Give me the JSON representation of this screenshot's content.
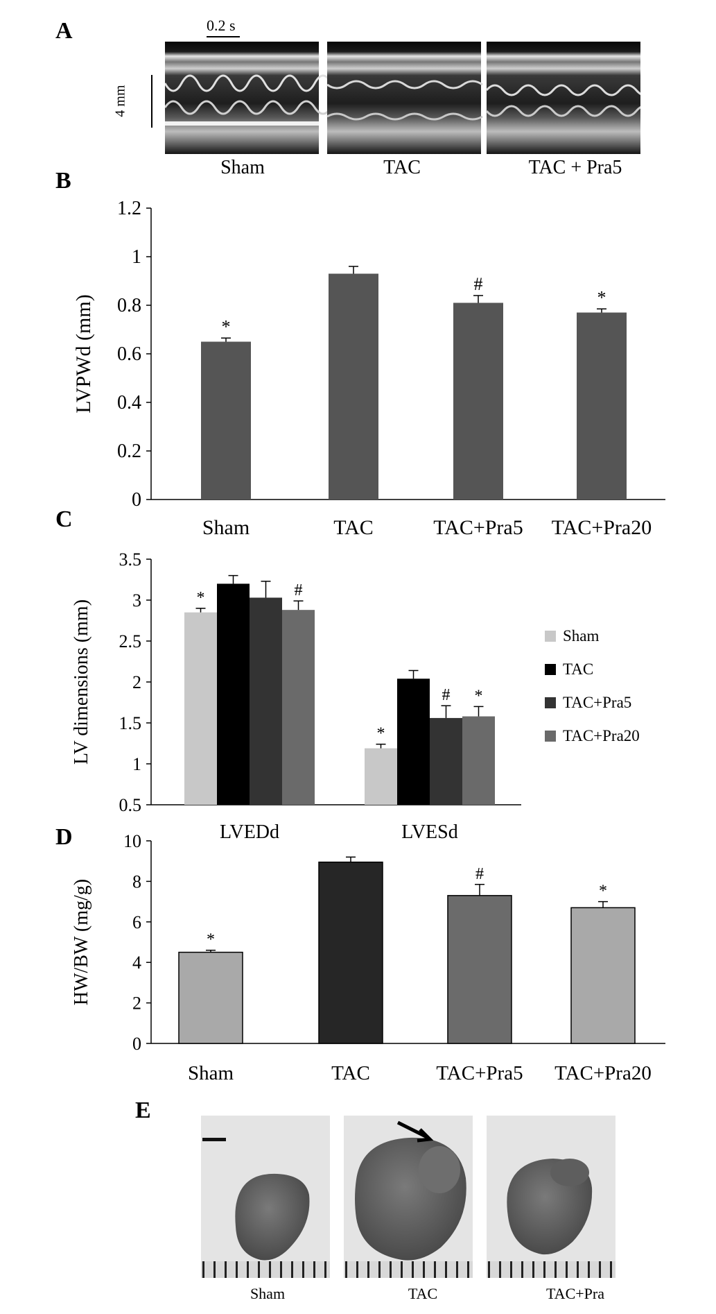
{
  "panels": {
    "A": {
      "letter": "A",
      "time_scale": "0.2 s",
      "distance_scale": "4 mm",
      "labels": [
        "Sham",
        "TAC",
        "TAC + Pra5"
      ]
    },
    "B": {
      "letter": "B"
    },
    "C": {
      "letter": "C"
    },
    "D": {
      "letter": "D"
    },
    "E": {
      "letter": "E",
      "labels": [
        "Sham",
        "TAC",
        "TAC+Pra"
      ]
    }
  },
  "chart_data": [
    {
      "id": "B",
      "type": "bar",
      "categories": [
        "Sham",
        "TAC",
        "TAC+Pra5",
        "TAC+Pra20"
      ],
      "values": [
        0.65,
        0.93,
        0.81,
        0.77
      ],
      "errors": [
        0.015,
        0.03,
        0.03,
        0.015
      ],
      "markers": [
        "*",
        "",
        "#",
        "*"
      ],
      "ylabel": "LVPWd (mm)",
      "ylim": [
        0,
        1.2
      ],
      "yticks": [
        "0",
        "0.2",
        "0.4",
        "0.6",
        "0.8",
        "1",
        "1.2"
      ],
      "color": "#555555"
    },
    {
      "id": "C",
      "type": "bar",
      "categories": [
        "LVEDd",
        "LVESd"
      ],
      "series": [
        {
          "name": "Sham",
          "values": [
            2.85,
            1.19
          ],
          "errors": [
            0.05,
            0.05
          ],
          "markers": [
            "*",
            "*"
          ],
          "color": "#c8c8c8"
        },
        {
          "name": "TAC",
          "values": [
            3.2,
            2.04
          ],
          "errors": [
            0.1,
            0.1
          ],
          "markers": [
            "",
            ""
          ],
          "color": "#000000"
        },
        {
          "name": "TAC+Pra5",
          "values": [
            3.03,
            1.56
          ],
          "errors": [
            0.2,
            0.15
          ],
          "markers": [
            "",
            "#"
          ],
          "color": "#333333"
        },
        {
          "name": "TAC+Pra20",
          "values": [
            2.88,
            1.58
          ],
          "errors": [
            0.11,
            0.12
          ],
          "markers": [
            "#",
            "*"
          ],
          "color": "#6a6a6a"
        }
      ],
      "ylabel": "LV dimensions (mm)",
      "ylim": [
        0.5,
        3.5
      ],
      "yticks": [
        "0.5",
        "1",
        "1.5",
        "2",
        "2.5",
        "3",
        "3.5"
      ],
      "legend": "right"
    },
    {
      "id": "D",
      "type": "bar",
      "categories": [
        "Sham",
        "TAC",
        "TAC+Pra5",
        "TAC+Pra20"
      ],
      "values": [
        4.5,
        8.95,
        7.3,
        6.7
      ],
      "errors": [
        0.1,
        0.25,
        0.55,
        0.3
      ],
      "markers": [
        "*",
        "",
        "#",
        "*"
      ],
      "colors": [
        "#a9a9a9",
        "#262626",
        "#6b6b6b",
        "#a9a9a9"
      ],
      "ylabel": "HW/BW (mg/g)",
      "ylim": [
        0,
        10
      ],
      "yticks": [
        "0",
        "2",
        "4",
        "6",
        "8",
        "10"
      ]
    }
  ]
}
